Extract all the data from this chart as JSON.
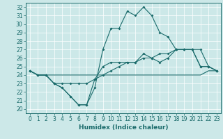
{
  "title": "",
  "xlabel": "Humidex (Indice chaleur)",
  "bg_color": "#cce8e8",
  "line_color": "#1a6b6b",
  "grid_color": "#ffffff",
  "xlim": [
    -0.5,
    23.5
  ],
  "ylim": [
    19.5,
    32.5
  ],
  "xticks": [
    0,
    1,
    2,
    3,
    4,
    5,
    6,
    7,
    8,
    9,
    10,
    11,
    12,
    13,
    14,
    15,
    16,
    17,
    18,
    19,
    20,
    21,
    22,
    23
  ],
  "yticks": [
    20,
    21,
    22,
    23,
    24,
    25,
    26,
    27,
    28,
    29,
    30,
    31,
    32
  ],
  "line1": [
    24.5,
    24.0,
    24.0,
    23.0,
    22.5,
    21.5,
    20.5,
    20.5,
    22.5,
    27.0,
    29.5,
    29.5,
    31.5,
    31.0,
    32.0,
    31.0,
    29.0,
    28.5,
    27.0,
    27.0,
    27.0,
    25.0,
    25.0,
    24.5
  ],
  "line2": [
    24.5,
    24.0,
    24.0,
    23.0,
    22.5,
    21.5,
    20.5,
    20.5,
    23.5,
    25.0,
    25.5,
    25.5,
    25.5,
    25.5,
    26.5,
    26.0,
    25.5,
    26.0,
    27.0,
    27.0,
    27.0,
    25.0,
    25.0,
    24.5
  ],
  "line3": [
    24.5,
    24.0,
    24.0,
    23.0,
    23.0,
    23.0,
    23.0,
    23.0,
    23.5,
    24.0,
    24.5,
    25.0,
    25.5,
    25.5,
    26.0,
    26.0,
    26.5,
    26.5,
    27.0,
    27.0,
    27.0,
    27.0,
    25.0,
    24.5
  ],
  "line4": [
    24.5,
    24.0,
    24.0,
    24.0,
    24.0,
    24.0,
    24.0,
    24.0,
    24.0,
    24.0,
    24.0,
    24.0,
    24.0,
    24.0,
    24.0,
    24.0,
    24.0,
    24.0,
    24.0,
    24.0,
    24.0,
    24.0,
    24.5,
    24.5
  ],
  "tick_fontsize": 5.5,
  "xlabel_fontsize": 6.5
}
